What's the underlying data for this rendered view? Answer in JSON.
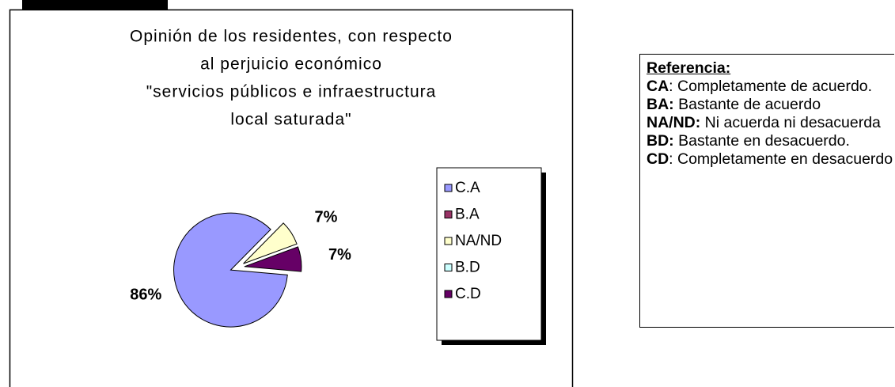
{
  "chart_data": {
    "type": "pie",
    "title": [
      "Opinión de los residentes, con respecto",
      "al perjuicio económico",
      "\"servicios públicos e  infraestructura",
      "local saturada\""
    ],
    "categories": [
      "C.A",
      "B.A",
      "NA/ND",
      "B.D",
      "C.D"
    ],
    "values": [
      86,
      0,
      7,
      0,
      7
    ],
    "value_labels": [
      "86%",
      null,
      "7%",
      null,
      "7%"
    ],
    "colors": [
      "#9999ff",
      "#993366",
      "#ffffcc",
      "#ccffff",
      "#660066"
    ],
    "legend": "right"
  },
  "reference": {
    "title": "Referencia:",
    "items": [
      {
        "abbr": "CA",
        "text": ": Completamente de acuerdo."
      },
      {
        "abbr": "BA:",
        "text": " Bastante de acuerdo"
      },
      {
        "abbr": "NA/ND:",
        "text": " Ni acuerda ni desacuerda"
      },
      {
        "abbr": "BD:",
        "text": " Bastante en desacuerdo."
      },
      {
        "abbr": "CD",
        "text": ": Completamente en desacuerdo"
      }
    ]
  }
}
